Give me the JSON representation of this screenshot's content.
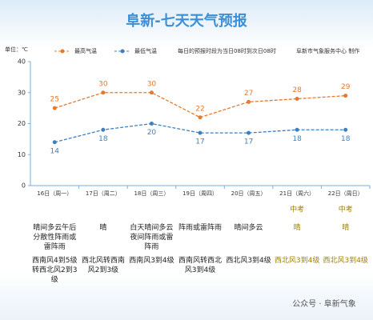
{
  "chart_data": {
    "type": "line",
    "title": "阜新-七天天气预报",
    "unit_label": "单位：℃",
    "notes": [
      "每日的预报时段为当日08时到次日08时",
      "阜新市气象服务中心 制作"
    ],
    "categories": [
      "16日（周一）",
      "17日（周二）",
      "18日（周三）",
      "19日（周四）",
      "20日（周五）",
      "21日（周六）",
      "22日（周日）"
    ],
    "series": [
      {
        "name": "最高气温",
        "color": "#e8782a",
        "values": [
          25,
          30,
          30,
          22,
          27,
          28,
          29
        ]
      },
      {
        "name": "最低气温",
        "color": "#3d7fc1",
        "values": [
          14,
          18,
          20,
          17,
          17,
          18,
          18
        ]
      }
    ],
    "ylim": [
      0,
      40
    ],
    "yticks": [
      0,
      10,
      20,
      30,
      40
    ],
    "grid": false,
    "exam": [
      null,
      null,
      null,
      null,
      null,
      "中考",
      "中考"
    ],
    "weather": [
      "晴间多云午后分散性阵雨或雷阵雨",
      "晴",
      "白天晴间多云夜间阵雨或雷阵雨",
      "阵雨或雷阵雨",
      "晴间多云",
      "晴",
      "晴"
    ],
    "wind": [
      "西南风4到5级转西北风2到3级",
      "西北风转西南风2到3级",
      "西南风3到4级",
      "西南风转西北风3到4级",
      "西北风3到4级",
      "西北风3到4级",
      "西北风3到4级"
    ],
    "watermark": "公众号 · 阜新气象"
  }
}
